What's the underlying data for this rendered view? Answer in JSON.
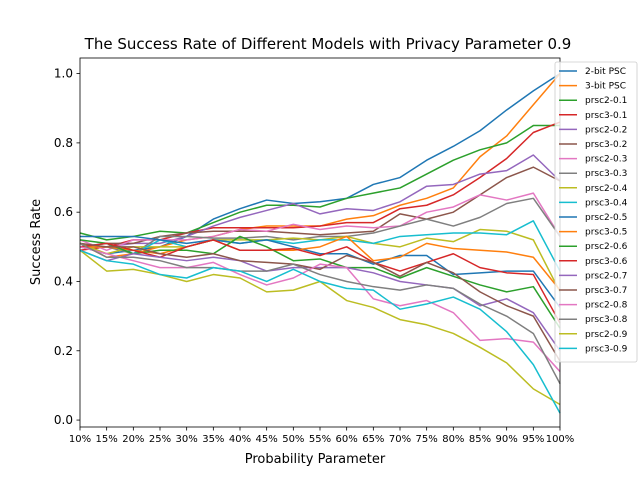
{
  "chart_data": {
    "type": "line",
    "title": "The Success Rate of Different Models with Privacy Parameter 0.9",
    "xlabel": "Probability Parameter",
    "ylabel": "Success Rate",
    "ylim": [
      -0.02,
      1.045
    ],
    "yticks": [
      "0.0",
      "0.2",
      "0.4",
      "0.6",
      "0.8",
      "1.0"
    ],
    "legend_position": "right",
    "categories": [
      "10%",
      "15%",
      "20%",
      "25%",
      "30%",
      "35%",
      "40%",
      "45%",
      "50%",
      "55%",
      "60%",
      "65%",
      "70%",
      "75%",
      "80%",
      "85%",
      "90%",
      "95%",
      "100%"
    ],
    "series": [
      {
        "name": "2-bit PSC",
        "color": "#1f77b4",
        "values": [
          0.5,
          0.48,
          0.49,
          0.5,
          0.53,
          0.58,
          0.61,
          0.635,
          0.625,
          0.63,
          0.64,
          0.68,
          0.7,
          0.75,
          0.79,
          0.835,
          0.895,
          0.95,
          1.0
        ]
      },
      {
        "name": "3-bit PSC",
        "color": "#ff7f0e",
        "values": [
          0.51,
          0.47,
          0.48,
          0.5,
          0.52,
          0.53,
          0.55,
          0.56,
          0.56,
          0.56,
          0.58,
          0.59,
          0.62,
          0.64,
          0.67,
          0.76,
          0.82,
          0.91,
          1.0
        ]
      },
      {
        "name": "prsc2-0.1",
        "color": "#2ca02c",
        "values": [
          0.54,
          0.52,
          0.53,
          0.545,
          0.54,
          0.57,
          0.6,
          0.62,
          0.62,
          0.615,
          0.64,
          0.655,
          0.67,
          0.71,
          0.75,
          0.78,
          0.8,
          0.85,
          0.85
        ]
      },
      {
        "name": "prsc3-0.1",
        "color": "#d62728",
        "values": [
          0.49,
          0.5,
          0.52,
          0.52,
          0.54,
          0.555,
          0.555,
          0.555,
          0.555,
          0.56,
          0.57,
          0.57,
          0.61,
          0.62,
          0.65,
          0.7,
          0.755,
          0.83,
          0.86
        ]
      },
      {
        "name": "prsc2-0.2",
        "color": "#9467bd",
        "values": [
          0.5,
          0.5,
          0.51,
          0.51,
          0.53,
          0.56,
          0.585,
          0.605,
          0.625,
          0.595,
          0.61,
          0.605,
          0.63,
          0.675,
          0.68,
          0.71,
          0.72,
          0.765,
          0.69
        ]
      },
      {
        "name": "prsc3-0.2",
        "color": "#8c564b",
        "values": [
          0.5,
          0.51,
          0.51,
          0.53,
          0.54,
          0.545,
          0.545,
          0.545,
          0.54,
          0.535,
          0.54,
          0.545,
          0.595,
          0.58,
          0.6,
          0.65,
          0.7,
          0.73,
          0.69
        ]
      },
      {
        "name": "prsc2-0.3",
        "color": "#e377c2",
        "values": [
          0.52,
          0.49,
          0.52,
          0.52,
          0.52,
          0.53,
          0.55,
          0.545,
          0.565,
          0.55,
          0.56,
          0.555,
          0.56,
          0.6,
          0.615,
          0.65,
          0.635,
          0.655,
          0.53
        ]
      },
      {
        "name": "prsc3-0.3",
        "color": "#7f7f7f",
        "values": [
          0.5,
          0.5,
          0.48,
          0.53,
          0.53,
          0.525,
          0.525,
          0.53,
          0.52,
          0.53,
          0.53,
          0.54,
          0.56,
          0.58,
          0.56,
          0.585,
          0.625,
          0.64,
          0.53
        ]
      },
      {
        "name": "prsc2-0.4",
        "color": "#bcbd22",
        "values": [
          0.51,
          0.48,
          0.5,
          0.5,
          0.5,
          0.52,
          0.52,
          0.52,
          0.525,
          0.52,
          0.53,
          0.51,
          0.5,
          0.525,
          0.515,
          0.55,
          0.545,
          0.52,
          0.37
        ]
      },
      {
        "name": "prsc3-0.4",
        "color": "#17becf",
        "values": [
          0.5,
          0.51,
          0.48,
          0.52,
          0.5,
          0.52,
          0.51,
          0.52,
          0.51,
          0.52,
          0.52,
          0.51,
          0.53,
          0.535,
          0.54,
          0.54,
          0.535,
          0.575,
          0.43
        ]
      },
      {
        "name": "prsc2-0.5",
        "color": "#1f77b4",
        "values": [
          0.53,
          0.53,
          0.53,
          0.52,
          0.51,
          0.52,
          0.51,
          0.52,
          0.5,
          0.48,
          0.48,
          0.45,
          0.475,
          0.475,
          0.42,
          0.425,
          0.43,
          0.43,
          0.325
        ]
      },
      {
        "name": "prsc3-0.5",
        "color": "#ff7f0e",
        "values": [
          0.5,
          0.5,
          0.49,
          0.48,
          0.5,
          0.52,
          0.49,
          0.49,
          0.49,
          0.5,
          0.53,
          0.46,
          0.47,
          0.51,
          0.495,
          0.49,
          0.485,
          0.47,
          0.375
        ]
      },
      {
        "name": "prsc2-0.6",
        "color": "#2ca02c",
        "values": [
          0.52,
          0.51,
          0.48,
          0.49,
          0.49,
          0.48,
          0.53,
          0.5,
          0.46,
          0.465,
          0.44,
          0.44,
          0.41,
          0.44,
          0.415,
          0.39,
          0.37,
          0.385,
          0.265
        ]
      },
      {
        "name": "prsc3-0.6",
        "color": "#d62728",
        "values": [
          0.5,
          0.51,
          0.49,
          0.47,
          0.5,
          0.52,
          0.49,
          0.49,
          0.495,
          0.475,
          0.5,
          0.455,
          0.43,
          0.455,
          0.48,
          0.44,
          0.425,
          0.42,
          0.28
        ]
      },
      {
        "name": "prsc2-0.7",
        "color": "#9467bd",
        "values": [
          0.49,
          0.46,
          0.48,
          0.47,
          0.46,
          0.47,
          0.46,
          0.43,
          0.44,
          0.44,
          0.44,
          0.425,
          0.4,
          0.39,
          0.38,
          0.33,
          0.35,
          0.31,
          0.2
        ]
      },
      {
        "name": "prsc3-0.7",
        "color": "#8c564b",
        "values": [
          0.51,
          0.5,
          0.5,
          0.48,
          0.47,
          0.48,
          0.46,
          0.455,
          0.45,
          0.435,
          0.475,
          0.455,
          0.415,
          0.455,
          0.425,
          0.37,
          0.33,
          0.3,
          0.17
        ]
      },
      {
        "name": "prsc2-0.8",
        "color": "#e377c2",
        "values": [
          0.5,
          0.48,
          0.46,
          0.44,
          0.44,
          0.455,
          0.42,
          0.39,
          0.41,
          0.45,
          0.44,
          0.35,
          0.33,
          0.345,
          0.31,
          0.23,
          0.235,
          0.225,
          0.14
        ]
      },
      {
        "name": "prsc3-0.8",
        "color": "#7f7f7f",
        "values": [
          0.51,
          0.47,
          0.47,
          0.46,
          0.44,
          0.44,
          0.43,
          0.43,
          0.45,
          0.42,
          0.4,
          0.385,
          0.375,
          0.39,
          0.38,
          0.335,
          0.3,
          0.25,
          0.105
        ]
      },
      {
        "name": "prsc2-0.9",
        "color": "#bcbd22",
        "values": [
          0.49,
          0.43,
          0.435,
          0.42,
          0.4,
          0.42,
          0.41,
          0.37,
          0.375,
          0.4,
          0.345,
          0.325,
          0.29,
          0.275,
          0.25,
          0.21,
          0.165,
          0.09,
          0.045
        ]
      },
      {
        "name": "prsc3-0.9",
        "color": "#17becf",
        "values": [
          0.49,
          0.46,
          0.45,
          0.42,
          0.41,
          0.44,
          0.43,
          0.4,
          0.435,
          0.4,
          0.38,
          0.375,
          0.32,
          0.335,
          0.355,
          0.32,
          0.255,
          0.16,
          0.02
        ]
      }
    ]
  }
}
